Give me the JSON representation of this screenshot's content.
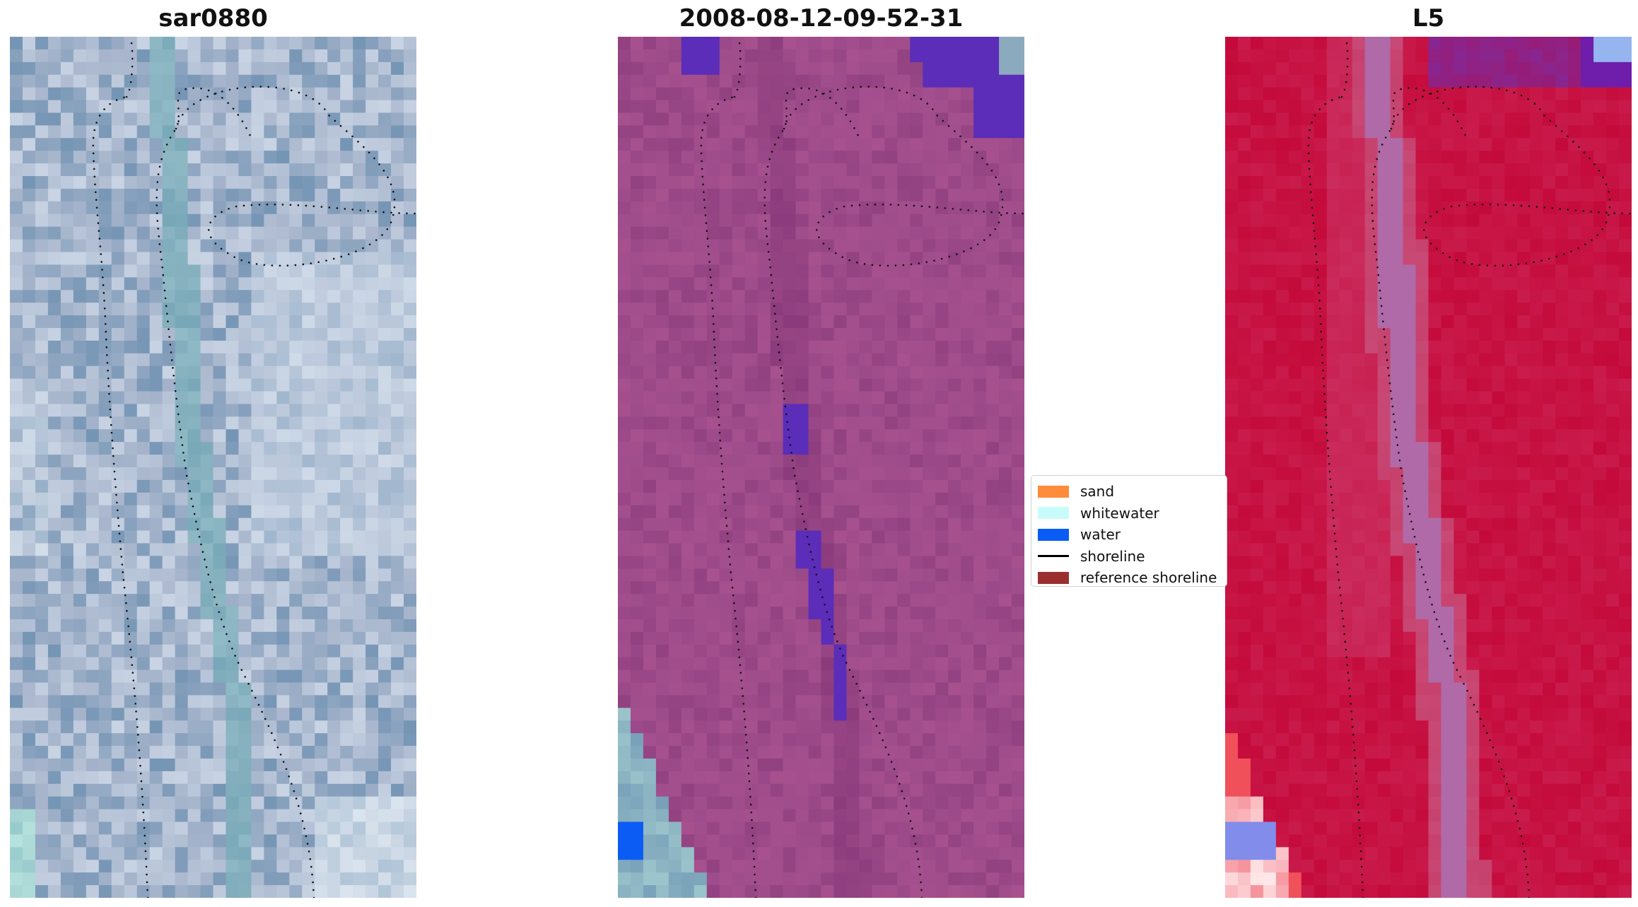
{
  "panels": [
    {
      "title": "sar0880",
      "scheme": "rgb"
    },
    {
      "title": "2008-08-12-09-52-31",
      "scheme": "classified"
    },
    {
      "title": "L5",
      "scheme": "index"
    }
  ],
  "legend": {
    "items": [
      {
        "label": "sand",
        "kind": "patch",
        "color": "#ff8c3a"
      },
      {
        "label": "whitewater",
        "kind": "patch",
        "color": "#c8fcfc"
      },
      {
        "label": "water",
        "kind": "patch",
        "color": "#0a5cf5"
      },
      {
        "label": "shoreline",
        "kind": "line",
        "color": "#000000"
      },
      {
        "label": "reference shoreline",
        "kind": "patch",
        "color": "#9b2f2f"
      }
    ]
  },
  "colors": {
    "rgb_base": "#a7b5cc",
    "classified_base": "#a04d8c",
    "classified_water": "#5b2db8",
    "index_base": "#c40a3a",
    "index_channel": "#b06aa8",
    "reference_shoreline_dots": "#111111"
  }
}
